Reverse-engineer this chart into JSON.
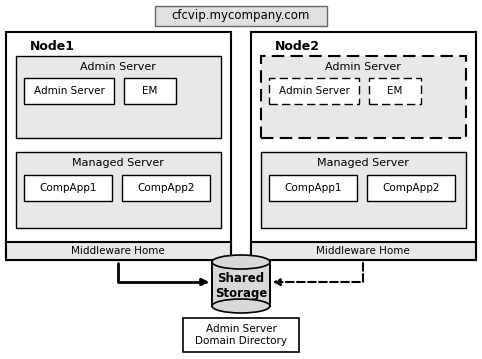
{
  "title": "cfcvip.mycompany.com",
  "bg_color": "#ffffff",
  "node1_label": "Node1",
  "node2_label": "Node2",
  "admin_server_label": "Admin Server",
  "managed_server_label": "Managed Server",
  "middleware_home_label": "Middleware Home",
  "admin_server_box_label": "Admin Server",
  "em_label": "EM",
  "compapp1_label": "CompApp1",
  "compapp2_label": "CompApp2",
  "shared_storage_label": "Shared\nStorage",
  "domain_dir_label": "Admin Server\nDomain Directory",
  "fill_gray": "#e8e8e8",
  "fill_white": "#ffffff",
  "fill_title": "#d4d4d4",
  "border_dark": "#000000"
}
